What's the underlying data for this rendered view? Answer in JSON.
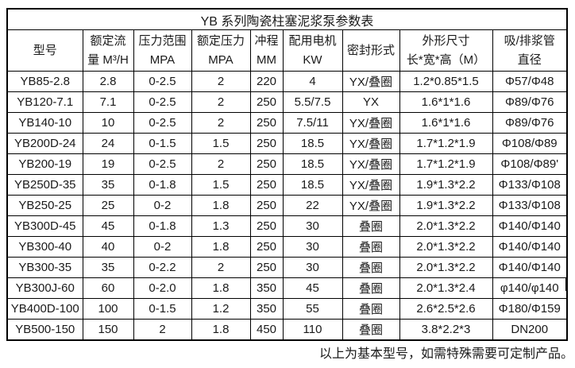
{
  "title": "YB 系列陶瓷柱塞泥浆泵参数表",
  "table": {
    "columns": [
      {
        "lines": [
          "型号"
        ]
      },
      {
        "lines": [
          "额定流",
          "量 M³/H"
        ]
      },
      {
        "lines": [
          "压力范围",
          "MPA"
        ]
      },
      {
        "lines": [
          "额定压力",
          "MPA"
        ]
      },
      {
        "lines": [
          "冲程",
          "MM"
        ]
      },
      {
        "lines": [
          "配用电机",
          "KW"
        ]
      },
      {
        "lines": [
          "密封形式"
        ]
      },
      {
        "lines": [
          "外形尺寸",
          "长*宽*高（M）"
        ]
      },
      {
        "lines": [
          "吸/排浆管",
          "直径"
        ]
      }
    ],
    "rows": [
      [
        "YB85-2.8",
        "2.8",
        "0-2.5",
        "2",
        "220",
        "4",
        "YX/叠圈",
        "1.2*0.85*1.5",
        "Φ57/Φ48"
      ],
      [
        "YB120-7.1",
        "7.1",
        "0-2.5",
        "2",
        "250",
        "5.5/7.5",
        "YX",
        "1.6*1*1.6",
        "Φ89/Φ76"
      ],
      [
        "YB140-10",
        "10",
        "0-2.5",
        "2",
        "250",
        "7.5/11",
        "YX/叠圈",
        "1.6*1*1.6",
        "Φ89/Φ76"
      ],
      [
        "YB200D-24",
        "24",
        "0-1.5",
        "1.5",
        "250",
        "18.5",
        "YX/叠圈",
        "1.7*1.2*1.9",
        "Φ108/Φ89"
      ],
      [
        "YB200-19",
        "19",
        "0-2.5",
        "2",
        "250",
        "18.5",
        "YX/叠圈",
        "1.7*1.2*1.9",
        "Φ108/Φ89'"
      ],
      [
        "YB250D-35",
        "35",
        "0-1.8",
        "1.5",
        "250",
        "18.5",
        "YX/叠圈",
        "1.9*1.3*2.2",
        "Φ133/Φ108"
      ],
      [
        "YB250-25",
        "25",
        "0-2",
        "1.8",
        "250",
        "22",
        "YX/叠圈",
        "1.9*1.3*2.2",
        "Φ133/Φ108"
      ],
      [
        "YB300D-45",
        "45",
        "0-1.8",
        "1.3",
        "250",
        "30",
        "叠圈",
        "2.0*1.3*2.2",
        "Φ140/Φ140"
      ],
      [
        "YB300-40",
        "40",
        "0-2",
        "1.8",
        "250",
        "30",
        "叠圈",
        "2.0*1.3*2.2",
        "Φ140/Φ140"
      ],
      [
        "YB300-35",
        "35",
        "0-2.2",
        "2",
        "250",
        "30",
        "叠圈",
        "2.0*1.3*2.2",
        "Φ140/Φ140"
      ],
      [
        "YB300J-60",
        "60",
        "0-2.0",
        "1.8",
        "350",
        "45",
        "叠圈",
        "2.0*1.3*2.4",
        "φ140/φ140"
      ],
      [
        "YB400D-100",
        "100",
        "0-1.5",
        "1.2",
        "350",
        "55",
        "叠圈",
        "2.6*2.5*2.6",
        "Φ180/Φ159"
      ],
      [
        "YB500-150",
        "150",
        "2",
        "1.8",
        "450",
        "110",
        "叠圈",
        "3.8*2.2*3",
        "DN200"
      ]
    ]
  },
  "footer": "以上为基本型号，如需特殊需要可定制产品。"
}
